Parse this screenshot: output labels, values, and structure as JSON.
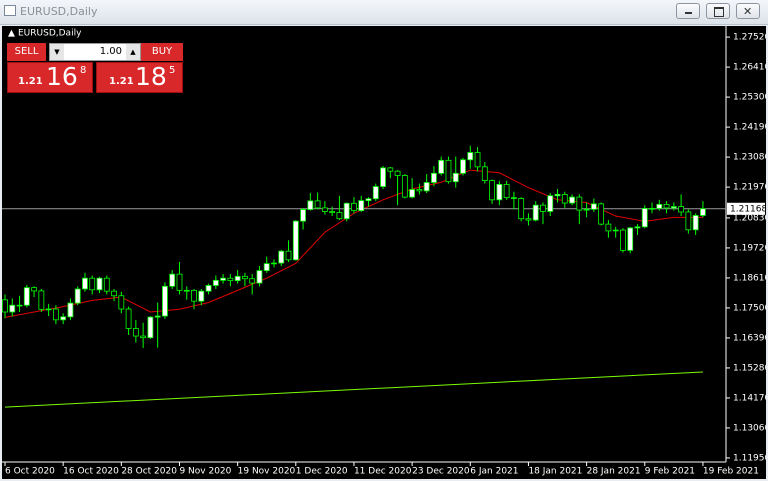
{
  "window": {
    "title": "EURUSD,Daily"
  },
  "trade_panel": {
    "sell": "SELL",
    "buy": "BUY",
    "lot": "1.00",
    "bid": {
      "big": "1.21",
      "pips": "16",
      "point": "8"
    },
    "ask": {
      "big": "1.21",
      "pips": "18",
      "point": "5"
    }
  },
  "chart_data": {
    "type": "candlestick",
    "title": "EURUSD,Daily",
    "categories": [
      "6 Oct 2020",
      null,
      null,
      null,
      null,
      null,
      null,
      null,
      "16 Oct 2020",
      null,
      null,
      null,
      null,
      null,
      null,
      null,
      "28 Oct 2020",
      null,
      null,
      null,
      null,
      null,
      null,
      null,
      "9 Nov 2020",
      null,
      null,
      null,
      null,
      null,
      null,
      null,
      "19 Nov 2020",
      null,
      null,
      null,
      null,
      null,
      null,
      null,
      "1 Dec 2020",
      null,
      null,
      null,
      null,
      null,
      null,
      null,
      "11 Dec 2020",
      null,
      null,
      null,
      null,
      null,
      null,
      null,
      "23 Dec 2020",
      null,
      null,
      null,
      null,
      null,
      null,
      null,
      "6 Jan 2021",
      null,
      null,
      null,
      null,
      null,
      null,
      null,
      "18 Jan 2021",
      null,
      null,
      null,
      null,
      null,
      null,
      null,
      "28 Jan 2021",
      null,
      null,
      null,
      null,
      null,
      null,
      null,
      "9 Feb 2021",
      null,
      null,
      null,
      null,
      null,
      null,
      null,
      "19 Feb 2021"
    ],
    "open": [
      1.178,
      1.1735,
      1.176,
      1.176,
      1.1825,
      1.1813,
      1.1745,
      1.1746,
      1.1706,
      1.1717,
      1.1768,
      1.182,
      1.186,
      1.1817,
      1.186,
      1.1812,
      1.1795,
      1.1746,
      1.1674,
      1.1646,
      1.164,
      1.1716,
      1.172,
      1.183,
      1.1875,
      1.1815,
      1.1815,
      1.1775,
      1.1812,
      1.1833,
      1.1852,
      1.186,
      1.1851,
      1.1867,
      1.1858,
      1.1842,
      1.1888,
      1.1914,
      1.1916,
      1.196,
      1.1928,
      1.2071,
      1.2114,
      1.2146,
      1.212,
      1.2107,
      1.2103,
      1.208,
      1.2137,
      1.211,
      1.2147,
      1.2154,
      1.2199,
      1.2268,
      1.2256,
      1.224,
      1.216,
      1.2188,
      1.2183,
      1.2214,
      1.2248,
      1.2296,
      1.2217,
      1.2248,
      1.2298,
      1.2325,
      1.2272,
      1.2221,
      1.215,
      1.2207,
      1.2158,
      1.2155,
      1.208,
      1.2075,
      1.213,
      1.2107,
      1.2165,
      1.217,
      1.2138,
      1.216,
      1.2112,
      1.2115,
      1.2135,
      1.206,
      1.2035,
      1.2038,
      1.1963,
      1.2046,
      1.205,
      1.2118,
      1.2118,
      1.2133,
      1.212,
      1.2125,
      1.2105,
      1.2039,
      1.2092
    ],
    "high": [
      1.18,
      1.1785,
      1.1795,
      1.1835,
      1.183,
      1.182,
      1.1765,
      1.176,
      1.173,
      1.1785,
      1.183,
      1.188,
      1.187,
      1.1865,
      1.187,
      1.182,
      1.181,
      1.1755,
      1.1705,
      1.1695,
      1.172,
      1.177,
      1.1845,
      1.189,
      1.192,
      1.183,
      1.182,
      1.182,
      1.184,
      1.187,
      1.1875,
      1.1875,
      1.189,
      1.188,
      1.1875,
      1.1905,
      1.194,
      1.193,
      1.1965,
      1.2,
      1.2075,
      1.212,
      1.2175,
      1.2177,
      1.2145,
      1.2125,
      1.2165,
      1.214,
      1.216,
      1.2165,
      1.216,
      1.221,
      1.2275,
      1.2272,
      1.226,
      1.2245,
      1.223,
      1.221,
      1.2245,
      1.2275,
      1.231,
      1.231,
      1.231,
      1.2305,
      1.235,
      1.2345,
      1.229,
      1.2225,
      1.222,
      1.222,
      1.218,
      1.216,
      1.21,
      1.2145,
      1.214,
      1.2175,
      1.219,
      1.218,
      1.217,
      1.217,
      1.214,
      1.2155,
      1.214,
      1.2075,
      1.205,
      1.2045,
      1.205,
      1.206,
      1.213,
      1.214,
      1.215,
      1.2145,
      1.214,
      1.217,
      1.2115,
      1.21,
      1.2145
    ],
    "low": [
      1.1712,
      1.1718,
      1.1735,
      1.1752,
      1.179,
      1.1735,
      1.172,
      1.169,
      1.169,
      1.1705,
      1.176,
      1.181,
      1.18,
      1.1805,
      1.18,
      1.1775,
      1.173,
      1.165,
      1.1622,
      1.1602,
      1.1635,
      1.1603,
      1.171,
      1.182,
      1.18,
      1.178,
      1.1745,
      1.176,
      1.18,
      1.182,
      1.184,
      1.183,
      1.184,
      1.183,
      1.18,
      1.183,
      1.188,
      1.19,
      1.1905,
      1.192,
      1.1925,
      1.204,
      1.211,
      1.2115,
      1.2095,
      1.209,
      1.2075,
      1.207,
      1.21,
      1.2105,
      1.2125,
      1.2145,
      1.219,
      1.223,
      1.213,
      1.2155,
      1.2155,
      1.217,
      1.2175,
      1.22,
      1.224,
      1.221,
      1.2195,
      1.224,
      1.2265,
      1.2255,
      1.221,
      1.2135,
      1.213,
      1.215,
      1.2115,
      1.207,
      1.2055,
      1.207,
      1.206,
      1.209,
      1.214,
      1.212,
      1.213,
      1.206,
      1.2085,
      1.2105,
      1.2055,
      1.201,
      1.201,
      1.1955,
      1.1952,
      1.202,
      1.2045,
      1.21,
      1.211,
      1.21,
      1.211,
      1.209,
      1.2025,
      1.202,
      1.2085
    ],
    "close": [
      1.1735,
      1.176,
      1.176,
      1.1825,
      1.1813,
      1.1745,
      1.1746,
      1.1706,
      1.1717,
      1.1768,
      1.182,
      1.186,
      1.1817,
      1.186,
      1.1812,
      1.1795,
      1.1746,
      1.1674,
      1.1646,
      1.164,
      1.1716,
      1.172,
      1.183,
      1.1875,
      1.1815,
      1.1815,
      1.1775,
      1.1812,
      1.1833,
      1.1852,
      1.186,
      1.1851,
      1.1867,
      1.1858,
      1.1842,
      1.1888,
      1.1914,
      1.1916,
      1.196,
      1.1928,
      1.2071,
      1.2114,
      1.2146,
      1.212,
      1.2107,
      1.2103,
      1.208,
      1.2137,
      1.211,
      1.2147,
      1.2154,
      1.2199,
      1.2268,
      1.2256,
      1.224,
      1.216,
      1.2188,
      1.2183,
      1.2214,
      1.2248,
      1.2296,
      1.2217,
      1.2248,
      1.2298,
      1.2325,
      1.2272,
      1.2221,
      1.215,
      1.2207,
      1.2158,
      1.2155,
      1.208,
      1.2075,
      1.213,
      1.2107,
      1.2165,
      1.217,
      1.2138,
      1.216,
      1.2112,
      1.2115,
      1.2135,
      1.206,
      1.2035,
      1.2038,
      1.1963,
      1.2046,
      1.205,
      1.2118,
      1.2118,
      1.2133,
      1.212,
      1.2125,
      1.2105,
      1.2039,
      1.2092,
      1.21168
    ],
    "bull_color": "#ffffff",
    "bear_color": "#000000",
    "wick_color": "#00ff00",
    "indicators": [
      {
        "color": "#e00000",
        "x": [
          0,
          4,
          8,
          12,
          16,
          20,
          24,
          28,
          32,
          36,
          40,
          44,
          48,
          52,
          56,
          60,
          64,
          68,
          72,
          76,
          80,
          84,
          88,
          92,
          96
        ],
        "values": [
          1.1715,
          1.1735,
          1.1755,
          1.1778,
          1.179,
          1.1735,
          1.1745,
          1.177,
          1.1815,
          1.186,
          1.1915,
          1.203,
          1.21,
          1.215,
          1.219,
          1.2215,
          1.226,
          1.225,
          1.2195,
          1.215,
          1.214,
          1.209,
          1.207,
          1.2085,
          1.2085
        ]
      },
      {
        "color": "#7cfc00",
        "x": [
          0,
          96
        ],
        "values": [
          1.1383,
          1.1513
        ]
      }
    ],
    "current_price": 1.21168,
    "ylim": [
      1.118,
      1.2793
    ],
    "yticks": [
      {
        "value": 1.2752,
        "label": "1.27520"
      },
      {
        "value": 1.2641,
        "label": "1.26410"
      },
      {
        "value": 1.253,
        "label": "1.25300"
      },
      {
        "value": 1.2419,
        "label": "1.24190"
      },
      {
        "value": 1.2308,
        "label": "1.23080"
      },
      {
        "value": 1.2197,
        "label": "1.21970"
      },
      {
        "value": 1.2083,
        "label": "1.20830"
      },
      {
        "value": 1.1972,
        "label": "1.19720"
      },
      {
        "value": 1.1861,
        "label": "1.18610"
      },
      {
        "value": 1.175,
        "label": "1.17500"
      },
      {
        "value": 1.1639,
        "label": "1.16390"
      },
      {
        "value": 1.1528,
        "label": "1.15280"
      },
      {
        "value": 1.1417,
        "label": "1.14170"
      },
      {
        "value": 1.1306,
        "label": "1.13060"
      },
      {
        "value": 1.1195,
        "label": "1.11950"
      }
    ],
    "grid": false
  }
}
